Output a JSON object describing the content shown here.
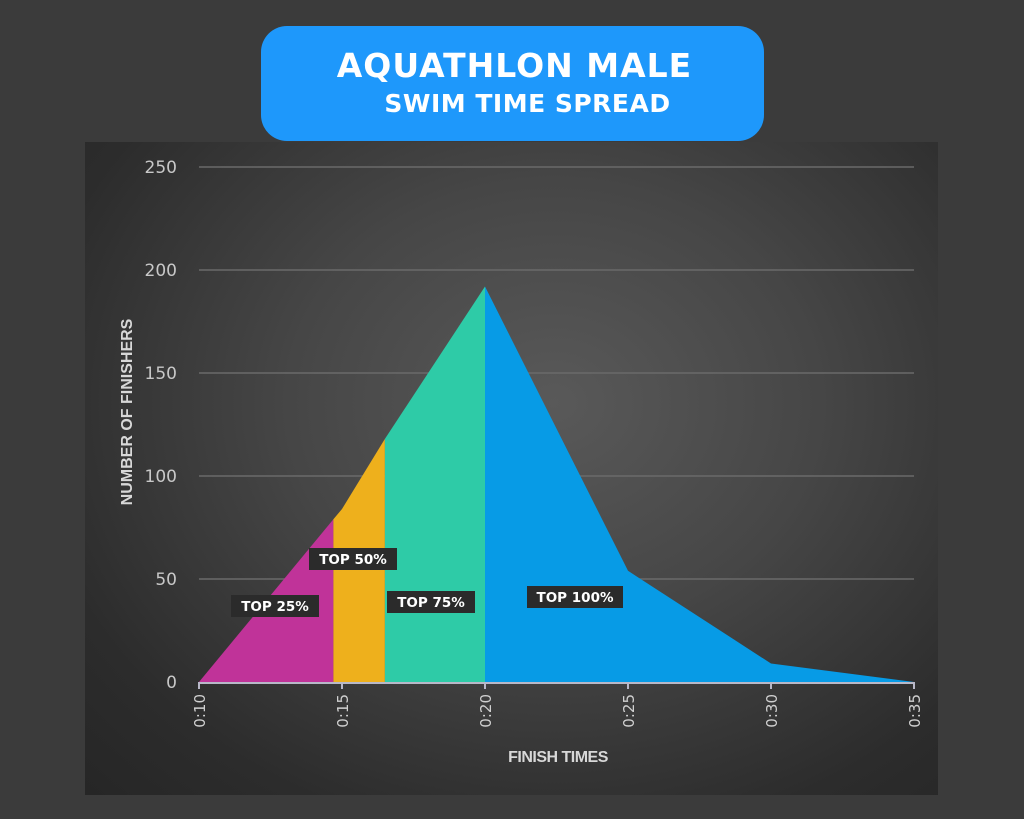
{
  "title": {
    "line1": "AQUATHLON MALE",
    "line2": "SWIM TIME SPREAD"
  },
  "colors": {
    "title_bg": "#1e98fb",
    "top25": "#c03399",
    "top50": "#eeb01c",
    "top75": "#2ecba7",
    "top100": "#079be6"
  },
  "axes": {
    "y_title": "NUMBER OF FINISHERS",
    "x_title": "FINISH TIMES",
    "y_ticks": [
      "0",
      "50",
      "100",
      "150",
      "200",
      "250"
    ],
    "x_ticks": [
      "0:10",
      "0:15",
      "0:20",
      "0:25",
      "0:30",
      "0:35"
    ]
  },
  "segments": [
    {
      "label": "TOP 25%"
    },
    {
      "label": "TOP 50%"
    },
    {
      "label": "TOP 75%"
    },
    {
      "label": "TOP 100%"
    }
  ],
  "chart_data": {
    "type": "area",
    "title": "AQUATHLON MALE SWIM TIME SPREAD",
    "xlabel": "FINISH TIMES",
    "ylabel": "NUMBER OF FINISHERS",
    "x_tick_labels": [
      "0:10",
      "0:15",
      "0:20",
      "0:25",
      "0:30",
      "0:35"
    ],
    "ylim": [
      0,
      250
    ],
    "y_ticks": [
      0,
      50,
      100,
      150,
      200,
      250
    ],
    "grid": true,
    "legend": "inline labels",
    "x_minutes": [
      10,
      14.7,
      15,
      16.5,
      20,
      25,
      30,
      35
    ],
    "values": [
      0,
      79,
      84,
      118,
      192,
      54,
      9,
      0
    ],
    "segments": [
      {
        "name": "TOP 25%",
        "x_range": [
          "0:10",
          "~0:14.7"
        ],
        "color": "#c03399"
      },
      {
        "name": "TOP 50%",
        "x_range": [
          "~0:14.7",
          "~0:16.5"
        ],
        "color": "#eeb01c"
      },
      {
        "name": "TOP 75%",
        "x_range": [
          "~0:16.5",
          "0:20"
        ],
        "color": "#2ecba7"
      },
      {
        "name": "TOP 100%",
        "x_range": [
          "0:20",
          "0:35"
        ],
        "color": "#079be6"
      }
    ]
  }
}
